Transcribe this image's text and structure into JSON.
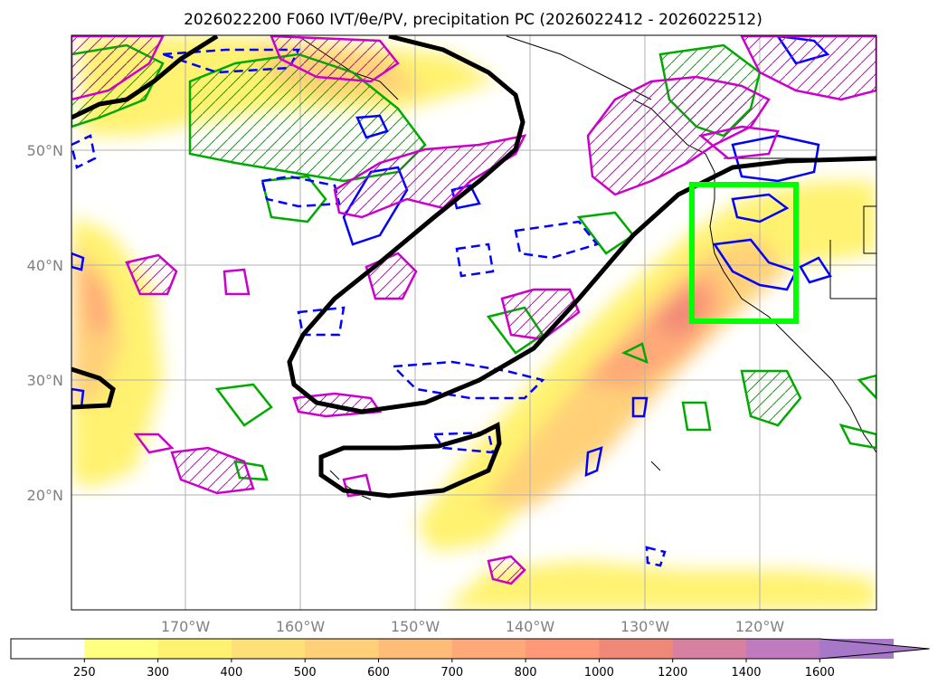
{
  "title": "2026022200 F060 IVT/θe/PV, precipitation PC (2026022412 - 2026022512)",
  "map": {
    "lat_labels": [
      "50°N",
      "40°N",
      "30°N",
      "20°N"
    ],
    "lon_labels": [
      "170°W",
      "160°W",
      "150°W",
      "140°W",
      "130°W",
      "120°W"
    ],
    "lat_values": [
      50,
      40,
      30,
      20
    ],
    "lon_values": [
      -170,
      -160,
      -150,
      -140,
      -130,
      -120
    ],
    "lon_range": [
      -180,
      -110
    ],
    "lat_range": [
      10,
      60
    ],
    "highlight_box": {
      "lon": [
        -126.5,
        -117.5
      ],
      "lat": [
        35,
        47
      ],
      "color": "#00ff00"
    }
  },
  "chart_data": {
    "type": "heatmap",
    "title": "2026022200 F060 IVT/θe/PV, precipitation PC (2026022412 - 2026022512)",
    "variable": "IVT",
    "colorbar": {
      "levels": [
        "250",
        "300",
        "400",
        "500",
        "600",
        "700",
        "800",
        "1000",
        "1200",
        "1400",
        "1600"
      ],
      "colors": [
        "#ffff80",
        "#fff270",
        "#ffe078",
        "#ffd078",
        "#ffbc78",
        "#ffa878",
        "#ff9878",
        "#f08878",
        "#d880a0",
        "#c07ac0",
        "#a878c8"
      ],
      "extend": "max"
    },
    "contours": {
      "theta_e": {
        "color": "#000000"
      },
      "pv_positive": {
        "color": "#00aa00"
      },
      "pv_negative": {
        "color": "#0000ff"
      },
      "precip_pc": {
        "color": "#cc00cc"
      }
    }
  }
}
